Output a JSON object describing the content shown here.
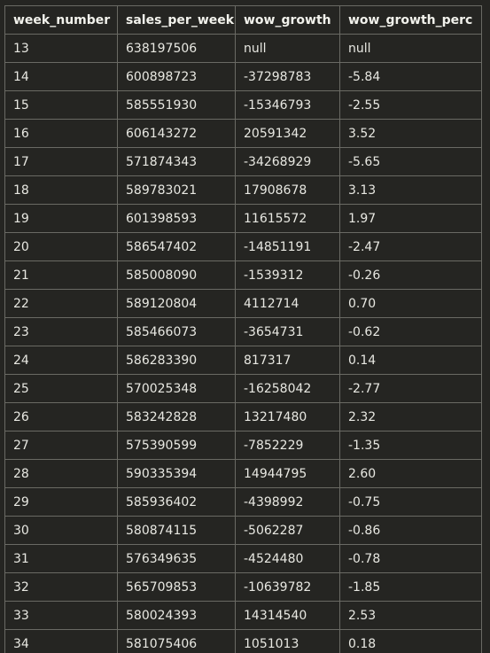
{
  "table": {
    "headers": [
      "week_number",
      "sales_per_week",
      "wow_growth",
      "wow_growth_perc"
    ],
    "rows": [
      [
        "13",
        "638197506",
        "null",
        "null"
      ],
      [
        "14",
        "600898723",
        "-37298783",
        "-5.84"
      ],
      [
        "15",
        "585551930",
        "-15346793",
        "-2.55"
      ],
      [
        "16",
        "606143272",
        "20591342",
        "3.52"
      ],
      [
        "17",
        "571874343",
        "-34268929",
        "-5.65"
      ],
      [
        "18",
        "589783021",
        "17908678",
        "3.13"
      ],
      [
        "19",
        "601398593",
        "11615572",
        "1.97"
      ],
      [
        "20",
        "586547402",
        "-14851191",
        "-2.47"
      ],
      [
        "21",
        "585008090",
        "-1539312",
        "-0.26"
      ],
      [
        "22",
        "589120804",
        "4112714",
        "0.70"
      ],
      [
        "23",
        "585466073",
        "-3654731",
        "-0.62"
      ],
      [
        "24",
        "586283390",
        "817317",
        "0.14"
      ],
      [
        "25",
        "570025348",
        "-16258042",
        "-2.77"
      ],
      [
        "26",
        "583242828",
        "13217480",
        "2.32"
      ],
      [
        "27",
        "575390599",
        "-7852229",
        "-1.35"
      ],
      [
        "28",
        "590335394",
        "14944795",
        "2.60"
      ],
      [
        "29",
        "585936402",
        "-4398992",
        "-0.75"
      ],
      [
        "30",
        "580874115",
        "-5062287",
        "-0.86"
      ],
      [
        "31",
        "576349635",
        "-4524480",
        "-0.78"
      ],
      [
        "32",
        "565709853",
        "-10639782",
        "-1.85"
      ],
      [
        "33",
        "580024393",
        "14314540",
        "2.53"
      ],
      [
        "34",
        "581075406",
        "1051013",
        "0.18"
      ]
    ]
  }
}
